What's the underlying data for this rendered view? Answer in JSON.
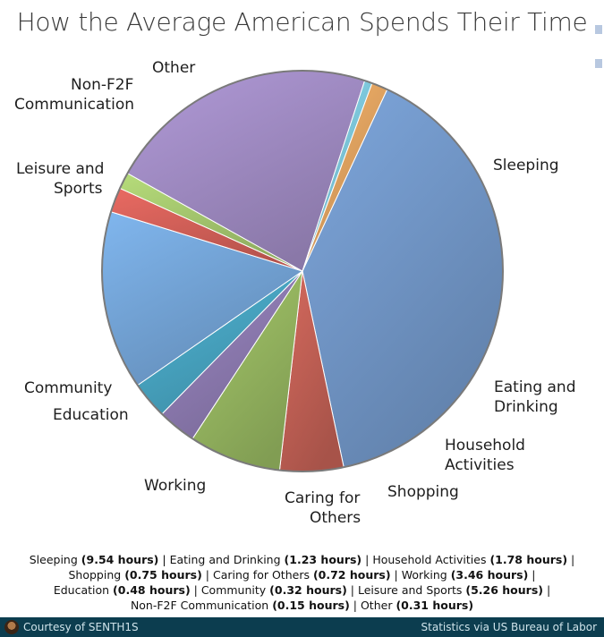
{
  "title": "How the Average American Spends Their Time",
  "chart_data": {
    "type": "pie",
    "title": "How the Average American Spends Their Time",
    "unit": "hours",
    "slices": [
      {
        "label": "Sleeping",
        "value": 9.54,
        "color": "#7ea7dd"
      },
      {
        "label": "Eating and Drinking",
        "value": 1.23,
        "color": "#d66a5e"
      },
      {
        "label": "Household Activities",
        "value": 1.78,
        "color": "#a6c96a"
      },
      {
        "label": "Shopping",
        "value": 0.75,
        "color": "#9c88c4"
      },
      {
        "label": "Caring for Others",
        "value": 0.72,
        "color": "#4fb6d6"
      },
      {
        "label": "Working",
        "value": 3.46,
        "color": "#80b6ee"
      },
      {
        "label": "Education",
        "value": 0.48,
        "color": "#e96a62"
      },
      {
        "label": "Community",
        "value": 0.32,
        "color": "#b6dc7a"
      },
      {
        "label": "Leisure and Sports",
        "value": 5.26,
        "color": "#b19ad8"
      },
      {
        "label": "Non-F2F Communication",
        "value": 0.15,
        "color": "#8adcf2"
      },
      {
        "label": "Other",
        "value": 0.31,
        "color": "#f8b46a"
      }
    ]
  },
  "slice_labels": {
    "sleeping": "Sleeping",
    "eating": [
      "Eating and",
      "Drinking"
    ],
    "household": [
      "Household",
      "Activities"
    ],
    "shopping": "Shopping",
    "caring": [
      "Caring for",
      "Others"
    ],
    "working": "Working",
    "education": "Education",
    "community": "Community",
    "leisure": [
      "Leisure and",
      "Sports"
    ],
    "nonf2f": [
      "Non-F2F",
      "Communication"
    ],
    "other": "Other"
  },
  "legend_items": [
    {
      "name": "Sleeping",
      "value": "(9.54 hours)"
    },
    {
      "name": "Eating and Drinking",
      "value": "(1.23 hours)"
    },
    {
      "name": "Household Activities",
      "value": "(1.78 hours)"
    },
    {
      "name": "Shopping",
      "value": "(0.75 hours)"
    },
    {
      "name": "Caring for Others",
      "value": "(0.72 hours)"
    },
    {
      "name": "Working",
      "value": "(3.46 hours)"
    },
    {
      "name": "Education",
      "value": "(0.48 hours)"
    },
    {
      "name": "Community",
      "value": "(0.32 hours)"
    },
    {
      "name": "Leisure and Sports",
      "value": "(5.26 hours)"
    },
    {
      "name": "Non-F2F Communication",
      "value": "(0.15 hours)"
    },
    {
      "name": "Other",
      "value": "(0.31 hours)"
    }
  ],
  "footer": {
    "credit": "Courtesy of SENTH1S",
    "source": "Statistics via US Bureau of Labor"
  }
}
